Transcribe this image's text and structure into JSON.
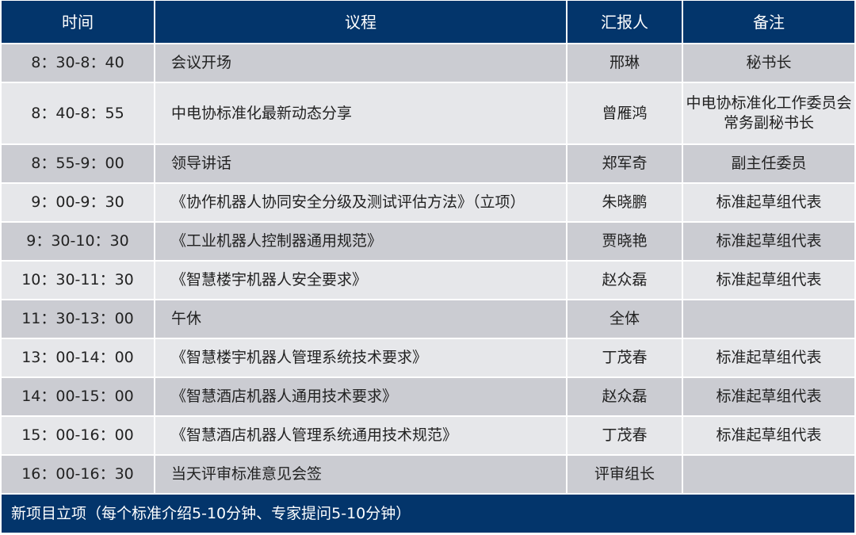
{
  "header": {
    "time": "时间",
    "agenda": "议程",
    "presenter": "汇报人",
    "notes": "备注"
  },
  "rows": [
    {
      "time": "8：30-8：40",
      "agenda": "会议开场",
      "presenter": "邢琳",
      "notes": "秘书长"
    },
    {
      "time": "8：40-8：55",
      "agenda": "中电协标准化最新动态分享",
      "presenter": "曾雁鸿",
      "notes": "中电协标准化工作委员会常务副秘书长"
    },
    {
      "time": "8：55-9：00",
      "agenda": "领导讲话",
      "presenter": "郑军奇",
      "notes": "副主任委员"
    },
    {
      "time": "9：00-9：30",
      "agenda": "《协作机器人协同安全分级及测试评估方法》（立项）",
      "presenter": "朱晓鹏",
      "notes": "标准起草组代表"
    },
    {
      "time": "9：30-10：30",
      "agenda": "《工业机器人控制器通用规范》",
      "presenter": "贾晓艳",
      "notes": "标准起草组代表"
    },
    {
      "time": "10：30-11：30",
      "agenda": "《智慧楼宇机器人安全要求》",
      "presenter": "赵众磊",
      "notes": "标准起草组代表"
    },
    {
      "time": "11：30-13：00",
      "agenda": "午休",
      "presenter": "全体",
      "notes": ""
    },
    {
      "time": "13：00-14：00",
      "agenda": "《智慧楼宇机器人管理系统技术要求》",
      "presenter": "丁茂春",
      "notes": "标准起草组代表"
    },
    {
      "time": "14：00-15：00",
      "agenda": "《智慧酒店机器人通用技术要求》",
      "presenter": "赵众磊",
      "notes": "标准起草组代表"
    },
    {
      "time": "15：00-16：00",
      "agenda": "《智慧酒店机器人管理系统通用技术规范》",
      "presenter": "丁茂春",
      "notes": "标准起草组代表"
    },
    {
      "time": "16：00-16：30",
      "agenda": "当天评审标准意见会签",
      "presenter": "评审组长",
      "notes": ""
    }
  ],
  "footer": "新项目立项（每个标准介绍5-10分钟、专家提问5-10分钟）",
  "colors": {
    "header": "#03356b",
    "row_dark": "#cbccd2",
    "row_light": "#e6e7ea"
  }
}
